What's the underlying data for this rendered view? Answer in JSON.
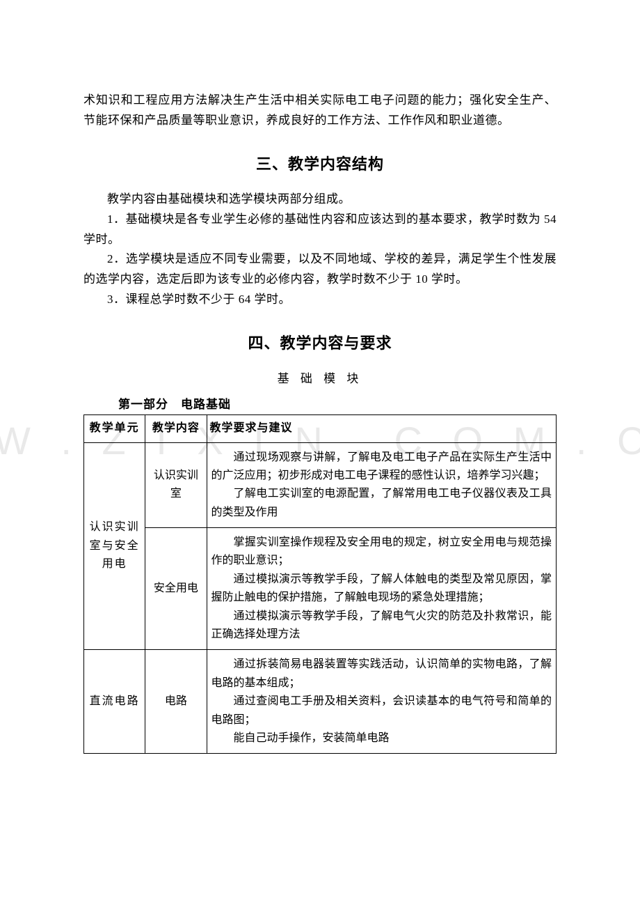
{
  "watermark": "W W . Z I X I N . C O M . C N",
  "intro_paragraph": "术知识和工程应用方法解决生产生活中相关实际电工电子问题的能力；强化安全生产、节能环保和产品质量等职业意识，养成良好的工作方法、工作作风和职业道德。",
  "heading_3": "三、教学内容结构",
  "section3": {
    "p0": "教学内容由基础模块和选学模块两部分组成。",
    "p1": "1．基础模块是各专业学生必修的基础性内容和应该达到的基本要求，教学时数为 54 学时。",
    "p2": "2．选学模块是适应不同专业需要，以及不同地域、学校的差异，满足学生个性发展的选学内容，选定后即为该专业的必修内容，教学时数不少于 10 学时。",
    "p3": "3．课程总学时数不少于 64 学时。"
  },
  "heading_4": "四、教学内容与要求",
  "sub_heading": "基 础 模 块",
  "part_label": "第一部分　电路基础",
  "table": {
    "headers": {
      "unit": "教学单元",
      "topic": "教学内容",
      "req": "教学要求与建议"
    },
    "rows": [
      {
        "unit": "认识实训室与安全用电",
        "topic": "认识实训室",
        "req_lines": [
          "通过现场观察与讲解，了解电及电工电子产品在实际生产生活中的广泛应用；初步形成对电工电子课程的感性认识，培养学习兴趣；",
          "了解电工实训室的电源配置，了解常用电工电子仪器仪表及工具的类型及作用"
        ],
        "unit_rowspan": 2
      },
      {
        "topic": "安全用电",
        "req_lines": [
          "掌握实训室操作规程及安全用电的规定，树立安全用电与规范操作的职业意识；",
          "通过模拟演示等教学手段，了解人体触电的类型及常见原因，掌握防止触电的保护措施，了解触电现场的紧急处理措施；",
          "通过模拟演示等教学手段，了解电气火灾的防范及扑救常识，能正确选择处理方法"
        ]
      },
      {
        "unit": "直流电路",
        "topic": "电路",
        "req_lines": [
          "通过拆装简易电器装置等实践活动，认识简单的实物电路，了解电路的基本组成；",
          "通过查阅电工手册及相关资料，会识读基本的电气符号和简单的电路图；",
          "能自己动手操作，安装简单电路"
        ]
      }
    ]
  }
}
